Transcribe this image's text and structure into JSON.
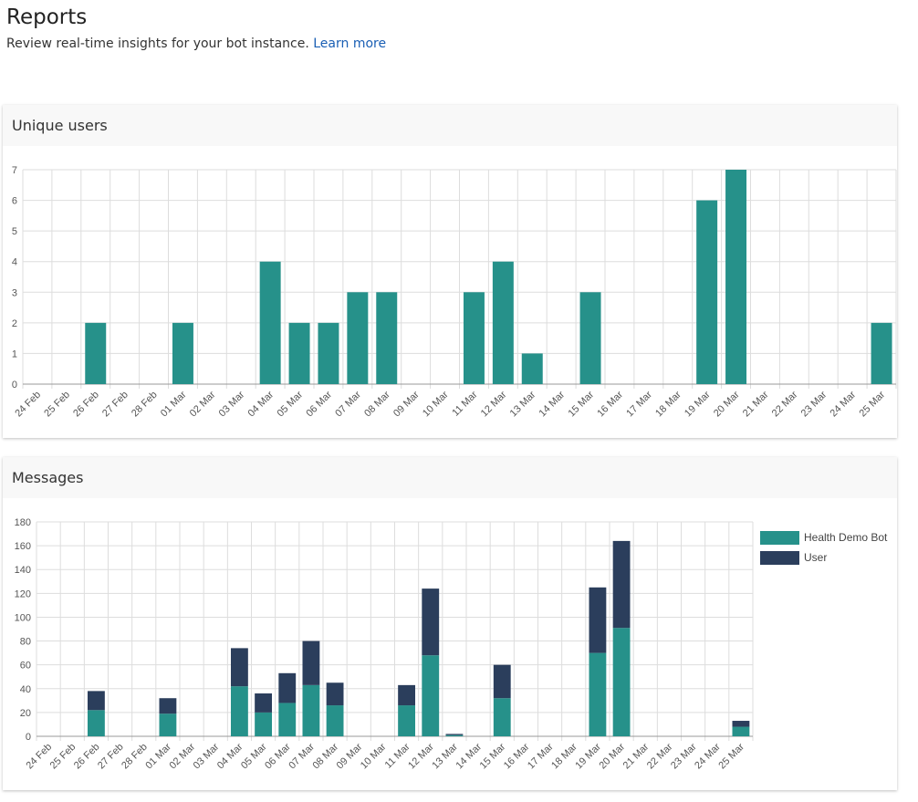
{
  "page": {
    "title": "Reports",
    "subtitle": "Review real-time insights for your bot instance.",
    "learn_more": "Learn more"
  },
  "cards": [
    {
      "title": "Unique users"
    },
    {
      "title": "Messages"
    }
  ],
  "colors": {
    "bot": "#26918a",
    "user": "#2b3e5c",
    "grid": "#dddddd"
  },
  "chart_data": [
    {
      "type": "bar",
      "title": "Unique users",
      "categories": [
        "24 Feb",
        "25 Feb",
        "26 Feb",
        "27 Feb",
        "28 Feb",
        "01 Mar",
        "02 Mar",
        "03 Mar",
        "04 Mar",
        "05 Mar",
        "06 Mar",
        "07 Mar",
        "08 Mar",
        "09 Mar",
        "10 Mar",
        "11 Mar",
        "12 Mar",
        "13 Mar",
        "14 Mar",
        "15 Mar",
        "16 Mar",
        "17 Mar",
        "18 Mar",
        "19 Mar",
        "20 Mar",
        "21 Mar",
        "22 Mar",
        "23 Mar",
        "24 Mar",
        "25 Mar"
      ],
      "values": [
        0,
        0,
        2,
        0,
        0,
        2,
        0,
        0,
        4,
        2,
        2,
        3,
        3,
        0,
        0,
        3,
        4,
        1,
        0,
        3,
        0,
        0,
        0,
        6,
        7,
        0,
        0,
        0,
        0,
        2
      ],
      "ylim": [
        0,
        7
      ],
      "yticks": [
        0,
        1,
        2,
        3,
        4,
        5,
        6,
        7
      ],
      "grid": true
    },
    {
      "type": "bar",
      "title": "Messages",
      "stacked": true,
      "categories": [
        "24 Feb",
        "25 Feb",
        "26 Feb",
        "27 Feb",
        "28 Feb",
        "01 Mar",
        "02 Mar",
        "03 Mar",
        "04 Mar",
        "05 Mar",
        "06 Mar",
        "07 Mar",
        "08 Mar",
        "09 Mar",
        "10 Mar",
        "11 Mar",
        "12 Mar",
        "13 Mar",
        "14 Mar",
        "15 Mar",
        "16 Mar",
        "17 Mar",
        "18 Mar",
        "19 Mar",
        "20 Mar",
        "21 Mar",
        "22 Mar",
        "23 Mar",
        "24 Mar",
        "25 Mar"
      ],
      "series": [
        {
          "name": "Health Demo Bot",
          "values": [
            0,
            0,
            22,
            0,
            0,
            19,
            0,
            0,
            42,
            20,
            28,
            43,
            26,
            0,
            0,
            26,
            68,
            1,
            0,
            32,
            0,
            0,
            0,
            70,
            91,
            0,
            0,
            0,
            0,
            8
          ]
        },
        {
          "name": "User",
          "values": [
            0,
            0,
            16,
            0,
            0,
            13,
            0,
            0,
            32,
            16,
            25,
            37,
            19,
            0,
            0,
            17,
            56,
            1,
            0,
            28,
            0,
            0,
            0,
            55,
            73,
            0,
            0,
            0,
            0,
            5
          ]
        }
      ],
      "ylim": [
        0,
        180
      ],
      "yticks": [
        0,
        20,
        40,
        60,
        80,
        100,
        120,
        140,
        160,
        180
      ],
      "grid": true,
      "legend": "right"
    }
  ]
}
